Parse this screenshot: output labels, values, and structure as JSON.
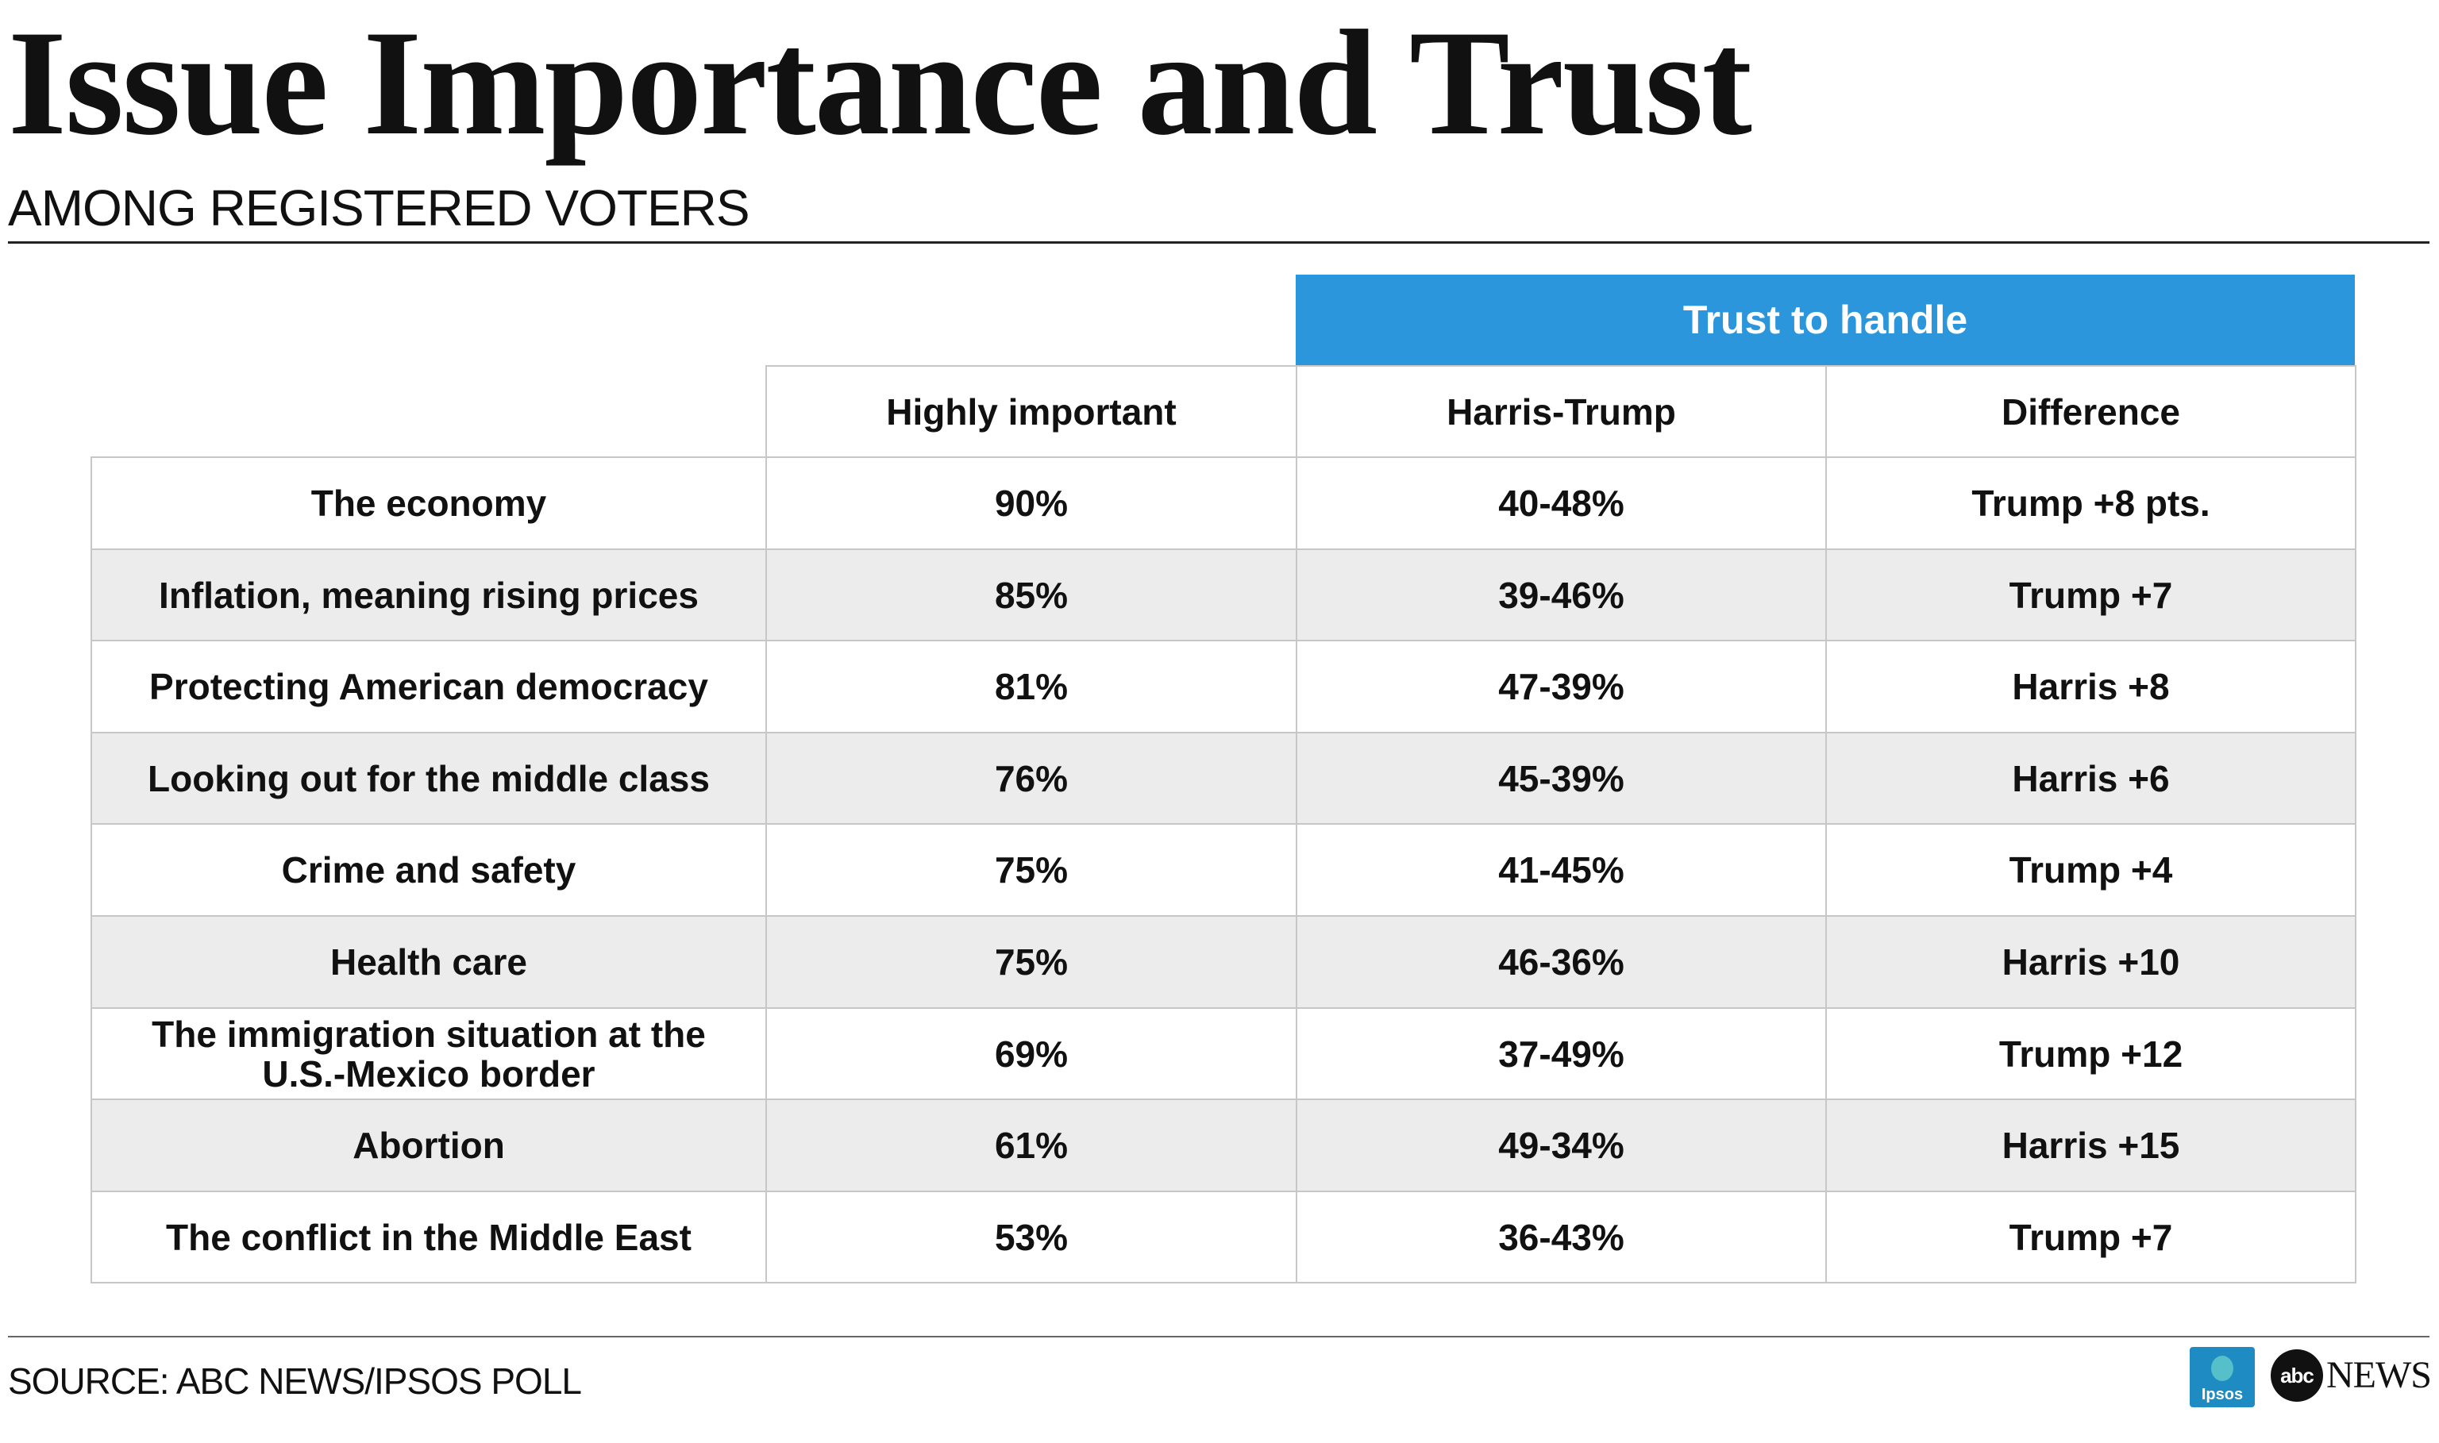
{
  "title": "Issue Importance and Trust",
  "subtitle": "AMONG REGISTERED VOTERS",
  "source": "SOURCE: ABC NEWS/IPSOS POLL",
  "logos": {
    "ipsos": "Ipsos",
    "abc": "abc",
    "news": "NEWS"
  },
  "colors": {
    "header_blue": "#2b96db",
    "row_shade": "#ececec",
    "border": "#c7c7c7"
  },
  "chart_data": {
    "type": "table",
    "group_header": "Trust to handle",
    "columns": [
      "Highly important",
      "Harris-Trump",
      "Difference"
    ],
    "rows": [
      {
        "issue": "The economy",
        "highly_important": "90%",
        "harris_trump": "40-48%",
        "difference": "Trump +8 pts."
      },
      {
        "issue": "Inflation, meaning rising prices",
        "highly_important": "85%",
        "harris_trump": "39-46%",
        "difference": "Trump +7"
      },
      {
        "issue": "Protecting American democracy",
        "highly_important": "81%",
        "harris_trump": "47-39%",
        "difference": "Harris +8"
      },
      {
        "issue": "Looking out for the middle class",
        "highly_important": "76%",
        "harris_trump": "45-39%",
        "difference": "Harris +6"
      },
      {
        "issue": "Crime and safety",
        "highly_important": "75%",
        "harris_trump": "41-45%",
        "difference": "Trump +4"
      },
      {
        "issue": "Health care",
        "highly_important": "75%",
        "harris_trump": "46-36%",
        "difference": "Harris +10"
      },
      {
        "issue": "The immigration situation at the U.S.-Mexico border",
        "highly_important": "69%",
        "harris_trump": "37-49%",
        "difference": "Trump +12"
      },
      {
        "issue": "Abortion",
        "highly_important": "61%",
        "harris_trump": "49-34%",
        "difference": "Harris +15"
      },
      {
        "issue": "The conflict in the Middle East",
        "highly_important": "53%",
        "harris_trump": "36-43%",
        "difference": "Trump +7"
      }
    ]
  }
}
